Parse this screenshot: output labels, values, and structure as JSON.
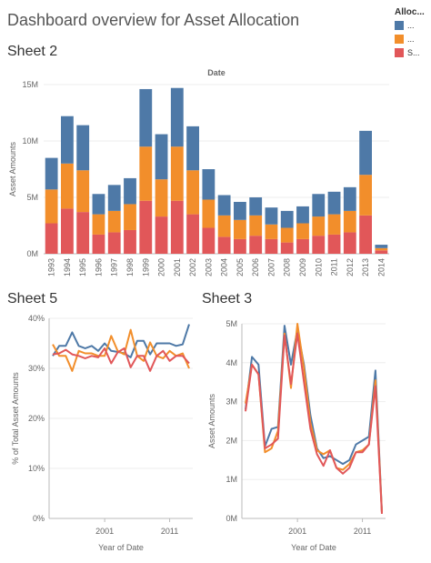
{
  "dashboard": {
    "title": "Dashboard overview for Asset Allocation"
  },
  "legend": {
    "title": "Alloc...",
    "items": [
      {
        "label": "...",
        "color": "#4e79a7"
      },
      {
        "label": "...",
        "color": "#f28e2b"
      },
      {
        "label": "S...",
        "color": "#e15759"
      }
    ]
  },
  "sheets": {
    "sheet2": {
      "title": "Sheet 2"
    },
    "sheet5": {
      "title": "Sheet 5"
    },
    "sheet3": {
      "title": "Sheet 3"
    }
  },
  "chart_data": [
    {
      "type": "bar",
      "stacked": true,
      "title": "Date",
      "xlabel": "",
      "ylabel": "Asset Amounts",
      "ylim": [
        0,
        15000000
      ],
      "yticks": [
        0,
        5000000,
        10000000,
        15000000
      ],
      "ytick_labels": [
        "0M",
        "5M",
        "10M",
        "15M"
      ],
      "categories": [
        "1993",
        "1994",
        "1995",
        "1996",
        "1997",
        "1998",
        "1999",
        "2000",
        "2001",
        "2002",
        "2003",
        "2004",
        "2005",
        "2006",
        "2007",
        "2008",
        "2009",
        "2010",
        "2011",
        "2012",
        "2013",
        "2014"
      ],
      "series": [
        {
          "color": "#e15759",
          "values": [
            2.7,
            4.0,
            3.7,
            1.7,
            1.9,
            2.1,
            4.7,
            3.3,
            4.7,
            3.5,
            2.3,
            1.5,
            1.3,
            1.6,
            1.3,
            1.0,
            1.3,
            1.6,
            1.7,
            1.9,
            3.4,
            0.3
          ]
        },
        {
          "color": "#f28e2b",
          "values": [
            3.0,
            4.0,
            3.7,
            1.8,
            1.9,
            2.3,
            4.8,
            3.3,
            4.8,
            3.9,
            2.5,
            1.9,
            1.7,
            1.8,
            1.3,
            1.3,
            1.4,
            1.7,
            1.8,
            1.9,
            3.6,
            0.2
          ]
        },
        {
          "color": "#4e79a7",
          "values": [
            2.8,
            4.2,
            4.0,
            1.8,
            2.3,
            2.3,
            5.1,
            4.0,
            5.2,
            3.9,
            2.7,
            1.8,
            1.6,
            1.6,
            1.5,
            1.5,
            1.5,
            2.0,
            2.0,
            2.1,
            3.9,
            0.3
          ]
        }
      ],
      "value_unit": "millions"
    },
    {
      "type": "line",
      "xlabel": "Year of Date",
      "ylabel": "% of Total Asset Amounts",
      "ylim": [
        0,
        40
      ],
      "yticks": [
        0,
        10,
        20,
        30,
        40
      ],
      "ytick_labels": [
        "0%",
        "10%",
        "20%",
        "30%",
        "40%"
      ],
      "xticks": [
        2001,
        2011
      ],
      "xtick_labels": [
        "2001",
        "2011"
      ],
      "x": [
        1993,
        1994,
        1995,
        1996,
        1997,
        1998,
        1999,
        2000,
        2001,
        2002,
        2003,
        2004,
        2005,
        2006,
        2007,
        2008,
        2009,
        2010,
        2011,
        2012,
        2013,
        2014
      ],
      "series": [
        {
          "color": "#4e79a7",
          "values": [
            32.5,
            34.5,
            34.5,
            37.2,
            34.5,
            34.0,
            34.5,
            33.5,
            35.0,
            33.5,
            33.3,
            33.0,
            32.2,
            35.5,
            35.5,
            32.8,
            35.0,
            35.0,
            35.0,
            34.5,
            34.8,
            38.8
          ]
        },
        {
          "color": "#f28e2b",
          "values": [
            34.8,
            32.5,
            32.5,
            29.5,
            33.5,
            33.0,
            33.0,
            32.5,
            32.5,
            36.5,
            33.5,
            32.8,
            37.7,
            32.5,
            31.5,
            35.2,
            32.5,
            32.0,
            33.5,
            32.5,
            33.0,
            30.0
          ]
        },
        {
          "color": "#e15759",
          "values": [
            32.8,
            33.0,
            33.7,
            32.8,
            32.5,
            32.0,
            32.5,
            32.2,
            34.0,
            31.0,
            33.2,
            34.0,
            30.2,
            32.5,
            32.5,
            29.5,
            32.5,
            33.5,
            31.5,
            32.5,
            32.5,
            31.0
          ]
        }
      ]
    },
    {
      "type": "line",
      "xlabel": "Year of Date",
      "ylabel": "Asset Amounts",
      "ylim": [
        0,
        5000000
      ],
      "yticks": [
        0,
        1000000,
        2000000,
        3000000,
        4000000,
        5000000
      ],
      "ytick_labels": [
        "0M",
        "1M",
        "2M",
        "3M",
        "4M",
        "5M"
      ],
      "xticks": [
        2001,
        2011
      ],
      "xtick_labels": [
        "2001",
        "2011"
      ],
      "x": [
        1993,
        1994,
        1995,
        1996,
        1997,
        1998,
        1999,
        2000,
        2001,
        2002,
        2003,
        2004,
        2005,
        2006,
        2007,
        2008,
        2009,
        2010,
        2011,
        2012,
        2013,
        2014
      ],
      "series": [
        {
          "color": "#4e79a7",
          "values": [
            2.8,
            4.15,
            3.95,
            1.85,
            2.3,
            2.35,
            4.95,
            3.95,
            4.85,
            3.95,
            2.65,
            1.8,
            1.55,
            1.6,
            1.5,
            1.4,
            1.5,
            1.9,
            2.0,
            2.1,
            3.8,
            0.15
          ]
        },
        {
          "color": "#f28e2b",
          "values": [
            2.95,
            3.95,
            3.7,
            1.7,
            1.8,
            2.25,
            4.75,
            3.35,
            5.0,
            3.85,
            2.45,
            1.75,
            1.65,
            1.75,
            1.3,
            1.25,
            1.4,
            1.7,
            1.75,
            1.9,
            3.55,
            0.15
          ]
        },
        {
          "color": "#e15759",
          "values": [
            2.75,
            3.95,
            3.7,
            1.8,
            1.9,
            2.05,
            4.7,
            3.45,
            4.75,
            3.5,
            2.3,
            1.65,
            1.35,
            1.75,
            1.3,
            1.15,
            1.3,
            1.7,
            1.7,
            1.9,
            3.4,
            0.12
          ]
        }
      ],
      "value_unit": "millions"
    }
  ]
}
